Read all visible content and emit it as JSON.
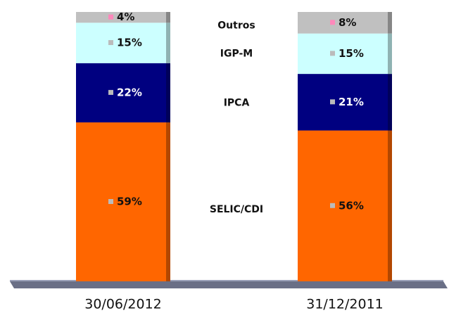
{
  "chart_data": {
    "type": "stacked_bar",
    "categories": [
      "30/06/2012",
      "31/12/2011"
    ],
    "series": [
      {
        "name": "SELIC/CDI",
        "color": "#ff6600",
        "values": [
          59,
          56
        ],
        "value_labels": [
          "59%",
          "56%"
        ]
      },
      {
        "name": "IPCA",
        "color": "#000080",
        "values": [
          22,
          21
        ],
        "value_labels": [
          "22%",
          "21%"
        ]
      },
      {
        "name": "IGP-M",
        "color": "#ccffff",
        "values": [
          15,
          15
        ],
        "value_labels": [
          "15%",
          "15%"
        ]
      },
      {
        "name": "Outros",
        "color": "#c0c0c0",
        "values": [
          4,
          8
        ],
        "value_labels": [
          "4%",
          "8%"
        ]
      }
    ]
  }
}
